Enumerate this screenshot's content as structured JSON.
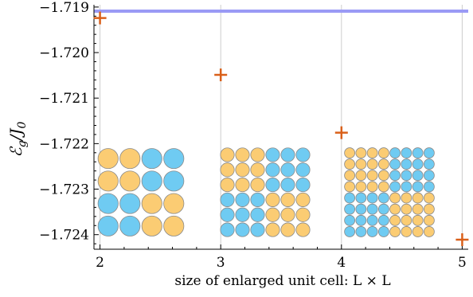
{
  "chart_data": {
    "type": "scatter",
    "title": "",
    "xlabel": "size of enlarged unit cell:  L × L",
    "ylabel": {
      "main": "ℰ",
      "sub": "g",
      "rest": "/J",
      "rest_sub": "0"
    },
    "xlim": [
      1.95,
      5.05
    ],
    "ylim": [
      -1.72432,
      -1.71895
    ],
    "xticks": [
      {
        "value": 2,
        "label": "2"
      },
      {
        "value": 3,
        "label": "3"
      },
      {
        "value": 4,
        "label": "4"
      },
      {
        "value": 5,
        "label": "5"
      }
    ],
    "yticks": [
      {
        "value": -1.719,
        "label": "−1.719"
      },
      {
        "value": -1.72,
        "label": "−1.720"
      },
      {
        "value": -1.721,
        "label": "−1.721"
      },
      {
        "value": -1.722,
        "label": "−1.722"
      },
      {
        "value": -1.723,
        "label": "−1.723"
      },
      {
        "value": -1.724,
        "label": "−1.724"
      }
    ],
    "grid": {
      "vertical": true,
      "horizontal": false
    },
    "series": [
      {
        "marker": "plus",
        "color": "#d9601a",
        "points": [
          {
            "x": 2,
            "y": -1.71924
          },
          {
            "x": 3,
            "y": -1.72049
          },
          {
            "x": 4,
            "y": -1.72176
          },
          {
            "x": 5,
            "y": -1.72411
          }
        ]
      }
    ],
    "reference_line": {
      "y": -1.71909,
      "color": "#9a9af5"
    },
    "insets": [
      {
        "L": 2,
        "rows": [
          "OOBB",
          "OOBB",
          "BBOO",
          "BBOO"
        ]
      },
      {
        "L": 3,
        "rows": [
          "OOOBBB",
          "OOOBBB",
          "OOOBBB",
          "BBBOOO",
          "BBBOOO",
          "BBBOOO"
        ]
      },
      {
        "L": 4,
        "rows": [
          "OOOOBBBB",
          "OOOOBBBB",
          "OOOOBBBB",
          "OOOOBBBB",
          "BBBBOOOO",
          "BBBBOOOO",
          "BBBBOOOO",
          "BBBBOOOO"
        ]
      }
    ],
    "colors": {
      "orange_disk": "#fbcc73",
      "blue_disk": "#6fcbf2",
      "disk_stroke": "#8a8a8a",
      "axis": "#000000",
      "grid": "#cccccc"
    }
  }
}
